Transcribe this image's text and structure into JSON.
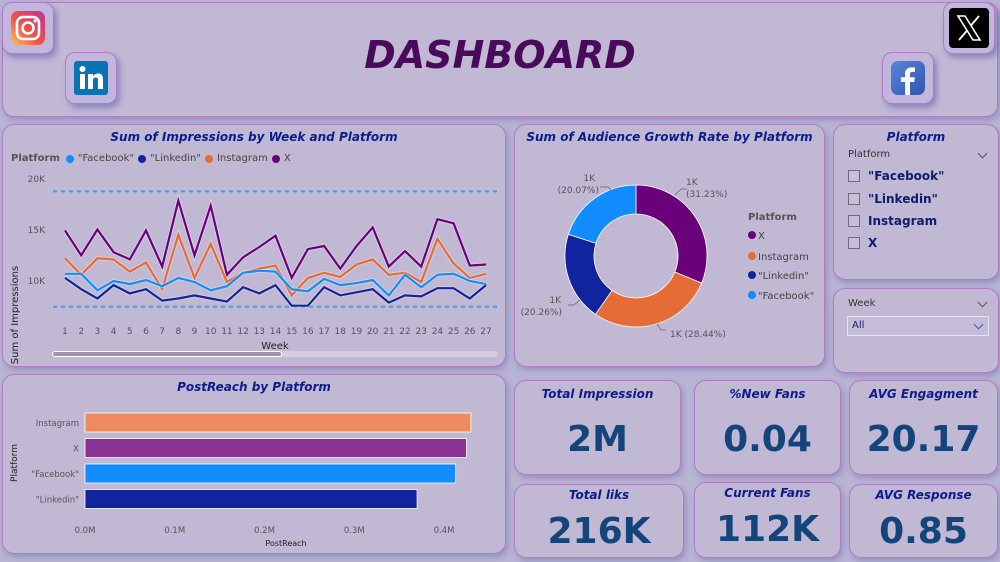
{
  "header": {
    "title": "DASHBOARD",
    "icons": [
      "instagram-icon",
      "linkedin-icon",
      "facebook-icon",
      "x-icon"
    ]
  },
  "colors": {
    "facebook": "#118dff",
    "linkedin": "#12239e",
    "instagram": "#e66c37",
    "x": "#6b007b",
    "title": "#0d1c8c",
    "kpi_value": "#13457a"
  },
  "line_chart": {
    "title": "Sum of Impressions by Week and Platform",
    "legend_title": "Platform",
    "legend": [
      "\"Facebook\"",
      "\"Linkedin\"",
      "Instagram",
      "X"
    ],
    "ylabel": "Sum of Impressions",
    "xlabel": "Week",
    "yticks": [
      "20K",
      "15K",
      "10K"
    ]
  },
  "donut_chart": {
    "title": "Sum of Audience Growth Rate by Platform",
    "legend_title": "Platform",
    "legend": [
      "X",
      "Instagram",
      "\"Linkedin\"",
      "\"Facebook\""
    ],
    "labels": {
      "x": [
        "1K",
        "(31.23%)"
      ],
      "instagram": [
        "1K (28.44%)"
      ],
      "linkedin": [
        "1K",
        "(20.26%)"
      ],
      "facebook": [
        "1K",
        "(20.07%)"
      ]
    }
  },
  "bar_chart": {
    "title": "PostReach by Platform",
    "ylabel": "Platform",
    "xlabel": "PostReach",
    "xticks": [
      "0.0M",
      "0.1M",
      "0.2M",
      "0.3M",
      "0.4M"
    ]
  },
  "slicers": {
    "platform": {
      "title": "Platform",
      "header": "Platform",
      "options": [
        "\"Facebook\"",
        "\"Linkedin\"",
        "Instagram",
        "X"
      ]
    },
    "week": {
      "header": "Week",
      "selected": "All"
    }
  },
  "kpis": [
    {
      "label": "Total Impression",
      "value": "2M"
    },
    {
      "label": "%New Fans",
      "value": "0.04"
    },
    {
      "label": "AVG Engagment",
      "value": "20.17"
    },
    {
      "label": "Total liks",
      "value": "216K"
    },
    {
      "label": "Current Fans",
      "value": "112K"
    },
    {
      "label": "AVG Response",
      "value": "0.85"
    }
  ],
  "chart_data": [
    {
      "type": "line",
      "title": "Sum of Impressions by Week and Platform",
      "xlabel": "Week",
      "ylabel": "Sum of Impressions",
      "x": [
        1,
        2,
        3,
        4,
        5,
        6,
        7,
        8,
        9,
        10,
        11,
        12,
        13,
        14,
        15,
        16,
        17,
        18,
        19,
        20,
        21,
        22,
        23,
        24,
        25,
        26,
        27
      ],
      "ylim": [
        6000,
        20000
      ],
      "reference_lines": [
        18700,
        7500
      ],
      "legend_position": "top-left",
      "series": [
        {
          "name": "X",
          "color": "#6b007b",
          "values": [
            14900,
            12500,
            15000,
            12800,
            12100,
            14900,
            11400,
            17800,
            12500,
            17300,
            10600,
            12300,
            13300,
            14400,
            10300,
            13100,
            13400,
            11200,
            13400,
            15200,
            11400,
            12900,
            11400,
            16000,
            15600,
            11500,
            11600
          ]
        },
        {
          "name": "Instagram",
          "color": "#e66c37",
          "values": [
            12200,
            10600,
            12200,
            12100,
            10900,
            11800,
            9200,
            14500,
            10300,
            13600,
            9900,
            10800,
            11200,
            11500,
            8600,
            10300,
            10800,
            10400,
            11600,
            12100,
            10600,
            10800,
            9900,
            14100,
            11700,
            10300,
            10700
          ]
        },
        {
          "name": "\"Facebook\"",
          "color": "#118dff",
          "values": [
            10700,
            10700,
            9100,
            10000,
            9700,
            10100,
            9500,
            10300,
            9900,
            9100,
            9500,
            10800,
            11000,
            10900,
            9200,
            9000,
            10200,
            9600,
            9800,
            10100,
            8600,
            10600,
            9400,
            10600,
            10700,
            10000,
            9700
          ]
        },
        {
          "name": "\"Linkedin\"",
          "color": "#12239e",
          "values": [
            10300,
            9200,
            8300,
            9600,
            8800,
            9200,
            8100,
            8300,
            8600,
            8300,
            8000,
            9400,
            8800,
            9600,
            7600,
            7600,
            9400,
            8600,
            8900,
            9200,
            7900,
            8600,
            8500,
            9300,
            9300,
            8300,
            9600
          ]
        }
      ]
    },
    {
      "type": "pie",
      "title": "Sum of Audience Growth Rate by Platform",
      "donut": true,
      "categories": [
        "X",
        "Instagram",
        "\"Linkedin\"",
        "\"Facebook\""
      ],
      "percent": [
        31.23,
        28.44,
        20.26,
        20.07
      ],
      "value_labels": [
        "1K",
        "1K",
        "1K",
        "1K"
      ],
      "colors": [
        "#6b007b",
        "#e66c37",
        "#12239e",
        "#118dff"
      ],
      "legend_position": "right"
    },
    {
      "type": "bar",
      "orientation": "horizontal",
      "title": "PostReach by Platform",
      "categories": [
        "Instagram",
        "X",
        "\"Facebook\"",
        "\"Linkedin\""
      ],
      "values": [
        430000,
        425000,
        413000,
        370000
      ],
      "colors": [
        "#ee8a5e",
        "#8a3293",
        "#118dff",
        "#12239e"
      ],
      "xlabel": "PostReach",
      "ylabel": "Platform",
      "xlim": [
        0,
        400000
      ]
    }
  ]
}
